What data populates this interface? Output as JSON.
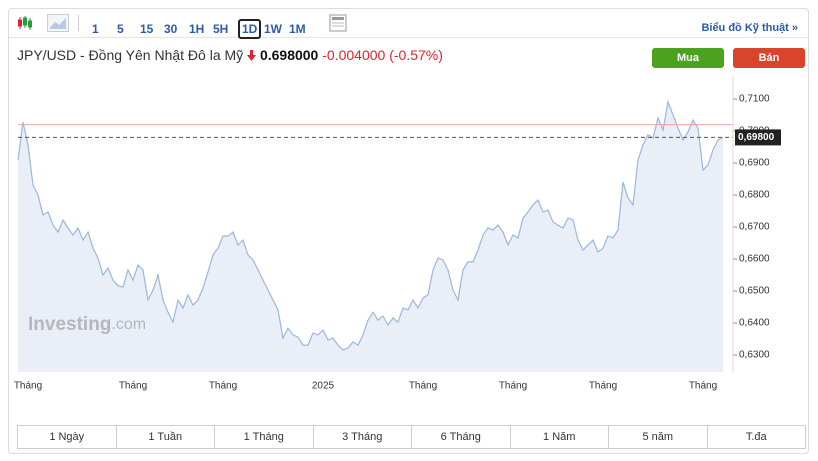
{
  "toolbar": {
    "intervals": [
      "1",
      "5",
      "15",
      "30",
      "1H",
      "5H",
      "1D",
      "1W",
      "1M"
    ],
    "selected": "1D",
    "link": "Biểu đồ Kỹ thuật »"
  },
  "header": {
    "name": "JPY/USD - Đồng Yên Nhật Đô la Mỹ",
    "price": "0.698000",
    "change": "-0.004000",
    "change_pct": "(-0.57%)"
  },
  "buttons": {
    "buy": "Mua",
    "sell": "Bán"
  },
  "watermark": {
    "brand": "Investing",
    "suffix": ".com"
  },
  "chart_data": {
    "type": "area",
    "color": "#9bb7de",
    "fill": "#e9eef7",
    "categories": [
      null,
      null,
      "Tháng",
      null,
      null,
      null,
      null,
      null,
      null,
      null,
      null,
      null,
      null,
      null,
      null,
      null,
      null,
      null,
      null,
      null,
      null,
      null,
      null,
      "Tháng",
      null,
      null,
      null,
      null,
      null,
      null,
      null,
      null,
      null,
      null,
      null,
      null,
      null,
      null,
      null,
      null,
      null,
      "Tháng",
      null,
      null,
      null,
      null,
      null,
      null,
      null,
      null,
      null,
      null,
      null,
      null,
      null,
      null,
      null,
      null,
      null,
      null,
      null,
      "2025",
      null,
      null,
      null,
      null,
      null,
      null,
      null,
      null,
      null,
      null,
      null,
      null,
      null,
      null,
      null,
      null,
      null,
      null,
      null,
      "Tháng",
      null,
      null,
      null,
      null,
      null,
      null,
      null,
      null,
      null,
      null,
      null,
      null,
      null,
      null,
      null,
      null,
      null,
      "Tháng",
      null,
      null,
      null,
      null,
      null,
      null,
      null,
      null,
      null,
      null,
      null,
      null,
      null,
      null,
      null,
      null,
      null,
      "Tháng",
      null,
      null,
      null,
      null,
      null,
      null,
      null,
      null,
      null,
      null,
      null,
      null,
      null,
      null,
      null,
      null,
      null,
      null,
      null,
      "Tháng",
      null,
      null,
      null,
      null
    ],
    "values": [
      0.6909,
      0.7028,
      0.6956,
      0.6831,
      0.68,
      0.6738,
      0.6747,
      0.6706,
      0.6684,
      0.6722,
      0.6697,
      0.6675,
      0.6697,
      0.6659,
      0.6684,
      0.6634,
      0.6603,
      0.655,
      0.6572,
      0.6534,
      0.6516,
      0.6513,
      0.6566,
      0.6534,
      0.6581,
      0.6566,
      0.6472,
      0.6503,
      0.655,
      0.6472,
      0.6434,
      0.6403,
      0.6472,
      0.6447,
      0.6488,
      0.6456,
      0.6472,
      0.6509,
      0.6559,
      0.6613,
      0.6634,
      0.6672,
      0.6672,
      0.6684,
      0.6644,
      0.6659,
      0.6613,
      0.6597,
      0.6566,
      0.6534,
      0.6503,
      0.6472,
      0.6441,
      0.6353,
      0.6384,
      0.6363,
      0.6356,
      0.6331,
      0.6331,
      0.6369,
      0.6363,
      0.6378,
      0.6347,
      0.6353,
      0.6331,
      0.6316,
      0.6322,
      0.6341,
      0.6331,
      0.6363,
      0.6409,
      0.6434,
      0.6409,
      0.6422,
      0.6394,
      0.6416,
      0.6403,
      0.6447,
      0.6441,
      0.6472,
      0.6447,
      0.6478,
      0.6488,
      0.6566,
      0.6603,
      0.6597,
      0.6566,
      0.6503,
      0.6472,
      0.6566,
      0.6591,
      0.6591,
      0.6628,
      0.6675,
      0.6697,
      0.6691,
      0.6706,
      0.6684,
      0.6644,
      0.6675,
      0.6666,
      0.6728,
      0.6747,
      0.6769,
      0.6784,
      0.6747,
      0.6753,
      0.6716,
      0.6706,
      0.6697,
      0.6728,
      0.6722,
      0.6659,
      0.6628,
      0.6644,
      0.6659,
      0.6622,
      0.6634,
      0.6672,
      0.6666,
      0.6691,
      0.6841,
      0.6791,
      0.6769,
      0.6909,
      0.6956,
      0.6988,
      0.6978,
      0.7041,
      0.7003,
      0.7091,
      0.705,
      0.7009,
      0.6972,
      0.6997,
      0.7034,
      0.7009,
      0.6878,
      0.6894,
      0.6941,
      0.6972,
      0.698
    ],
    "ylim": [
      0.6247,
      0.7175
    ],
    "yticks": [
      {
        "value": 0.63,
        "label": "0,6300"
      },
      {
        "value": 0.64,
        "label": "0,6400"
      },
      {
        "value": 0.65,
        "label": "0,6500"
      },
      {
        "value": 0.66,
        "label": "0,6600"
      },
      {
        "value": 0.67,
        "label": "0,6700"
      },
      {
        "value": 0.68,
        "label": "0,6800"
      },
      {
        "value": 0.69,
        "label": "0,6900"
      },
      {
        "value": 0.7,
        "label": "0,7000"
      },
      {
        "value": 0.71,
        "label": "0,7100"
      }
    ],
    "last_price": {
      "value": 0.698,
      "label": "0,69800"
    },
    "reference_line": 0.702,
    "reference_color": "#f2a0a0",
    "grid": false
  },
  "ranges": [
    "1 Ngày",
    "1 Tuần",
    "1 Tháng",
    "3 Tháng",
    "6 Tháng",
    "1 Năm",
    "5 năm",
    "T.đa"
  ]
}
